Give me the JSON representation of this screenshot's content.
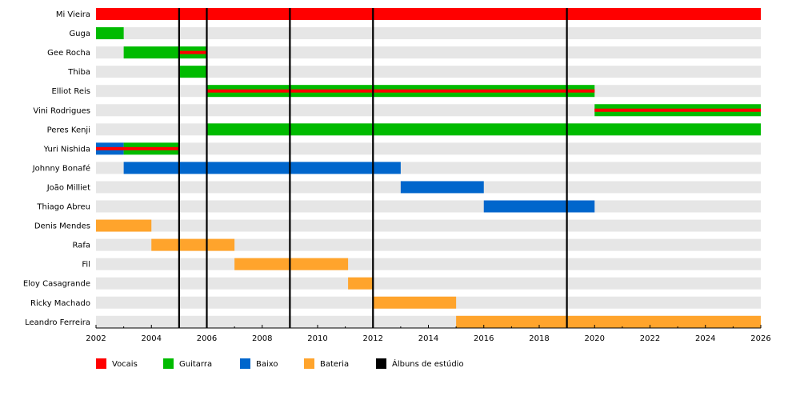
{
  "chart_data": {
    "type": "timeline",
    "title": "",
    "x_axis": {
      "min": 2002,
      "max": 2026,
      "ticks": [
        2002,
        2004,
        2006,
        2008,
        2010,
        2012,
        2014,
        2016,
        2018,
        2020,
        2022,
        2024,
        2026
      ]
    },
    "colors": {
      "Vocais": "#ff0000",
      "Guitarra": "#00bb00",
      "Baixo": "#0066cc",
      "Bateria": "#ffa42c",
      "Álbuns de estúdio": "#000000",
      "row_background": "#e6e6e6"
    },
    "legend": {
      "placement": "bottom",
      "entries": [
        {
          "label": "Vocais",
          "color": "#ff0000"
        },
        {
          "label": "Guitarra",
          "color": "#00bb00"
        },
        {
          "label": "Baixo",
          "color": "#0066cc"
        },
        {
          "label": "Bateria",
          "color": "#ffa42c"
        },
        {
          "label": "Álbuns de estúdio",
          "color": "#000000"
        }
      ]
    },
    "albums": [
      2005,
      2006,
      2009,
      2012,
      2019
    ],
    "members": [
      {
        "name": "Mi Vieira",
        "bars": [
          {
            "role": "Vocais",
            "start": 2002,
            "end": 2026
          }
        ]
      },
      {
        "name": "Guga",
        "bars": [
          {
            "role": "Guitarra",
            "start": 2002,
            "end": 2003
          }
        ]
      },
      {
        "name": "Gee Rocha",
        "bars": [
          {
            "role": "Guitarra",
            "start": 2003,
            "end": 2006
          }
        ],
        "stripes": [
          {
            "role": "Vocais",
            "start": 2005,
            "end": 2006
          }
        ]
      },
      {
        "name": "Thiba",
        "bars": [
          {
            "role": "Guitarra",
            "start": 2005,
            "end": 2006
          }
        ]
      },
      {
        "name": "Elliot Reis",
        "bars": [
          {
            "role": "Guitarra",
            "start": 2006,
            "end": 2020
          }
        ],
        "stripes": [
          {
            "role": "Vocais",
            "start": 2006,
            "end": 2020
          }
        ]
      },
      {
        "name": "Vini Rodrigues",
        "bars": [
          {
            "role": "Guitarra",
            "start": 2020,
            "end": 2026
          }
        ],
        "stripes": [
          {
            "role": "Vocais",
            "start": 2020,
            "end": 2026
          }
        ]
      },
      {
        "name": "Peres Kenji",
        "bars": [
          {
            "role": "Guitarra",
            "start": 2006,
            "end": 2026
          }
        ]
      },
      {
        "name": "Yuri Nishida",
        "bars": [
          {
            "role": "Baixo",
            "start": 2002,
            "end": 2003
          },
          {
            "role": "Guitarra",
            "start": 2003,
            "end": 2005
          }
        ],
        "stripes": [
          {
            "role": "Vocais",
            "start": 2002,
            "end": 2005
          }
        ]
      },
      {
        "name": "Johnny Bonafé",
        "bars": [
          {
            "role": "Baixo",
            "start": 2003,
            "end": 2013
          }
        ]
      },
      {
        "name": "João Milliet",
        "bars": [
          {
            "role": "Baixo",
            "start": 2013,
            "end": 2016
          }
        ]
      },
      {
        "name": "Thiago Abreu",
        "bars": [
          {
            "role": "Baixo",
            "start": 2016,
            "end": 2020
          }
        ]
      },
      {
        "name": "Denis Mendes",
        "bars": [
          {
            "role": "Bateria",
            "start": 2002,
            "end": 2004
          }
        ]
      },
      {
        "name": "Rafa",
        "bars": [
          {
            "role": "Bateria",
            "start": 2004,
            "end": 2007
          }
        ]
      },
      {
        "name": "Fil",
        "bars": [
          {
            "role": "Bateria",
            "start": 2007,
            "end": 2011.1
          }
        ]
      },
      {
        "name": "Eloy Casagrande",
        "bars": [
          {
            "role": "Bateria",
            "start": 2011.1,
            "end": 2012
          }
        ]
      },
      {
        "name": "Ricky Machado",
        "bars": [
          {
            "role": "Bateria",
            "start": 2012,
            "end": 2015
          }
        ]
      },
      {
        "name": "Leandro Ferreira",
        "bars": [
          {
            "role": "Bateria",
            "start": 2015,
            "end": 2026
          }
        ]
      }
    ]
  }
}
